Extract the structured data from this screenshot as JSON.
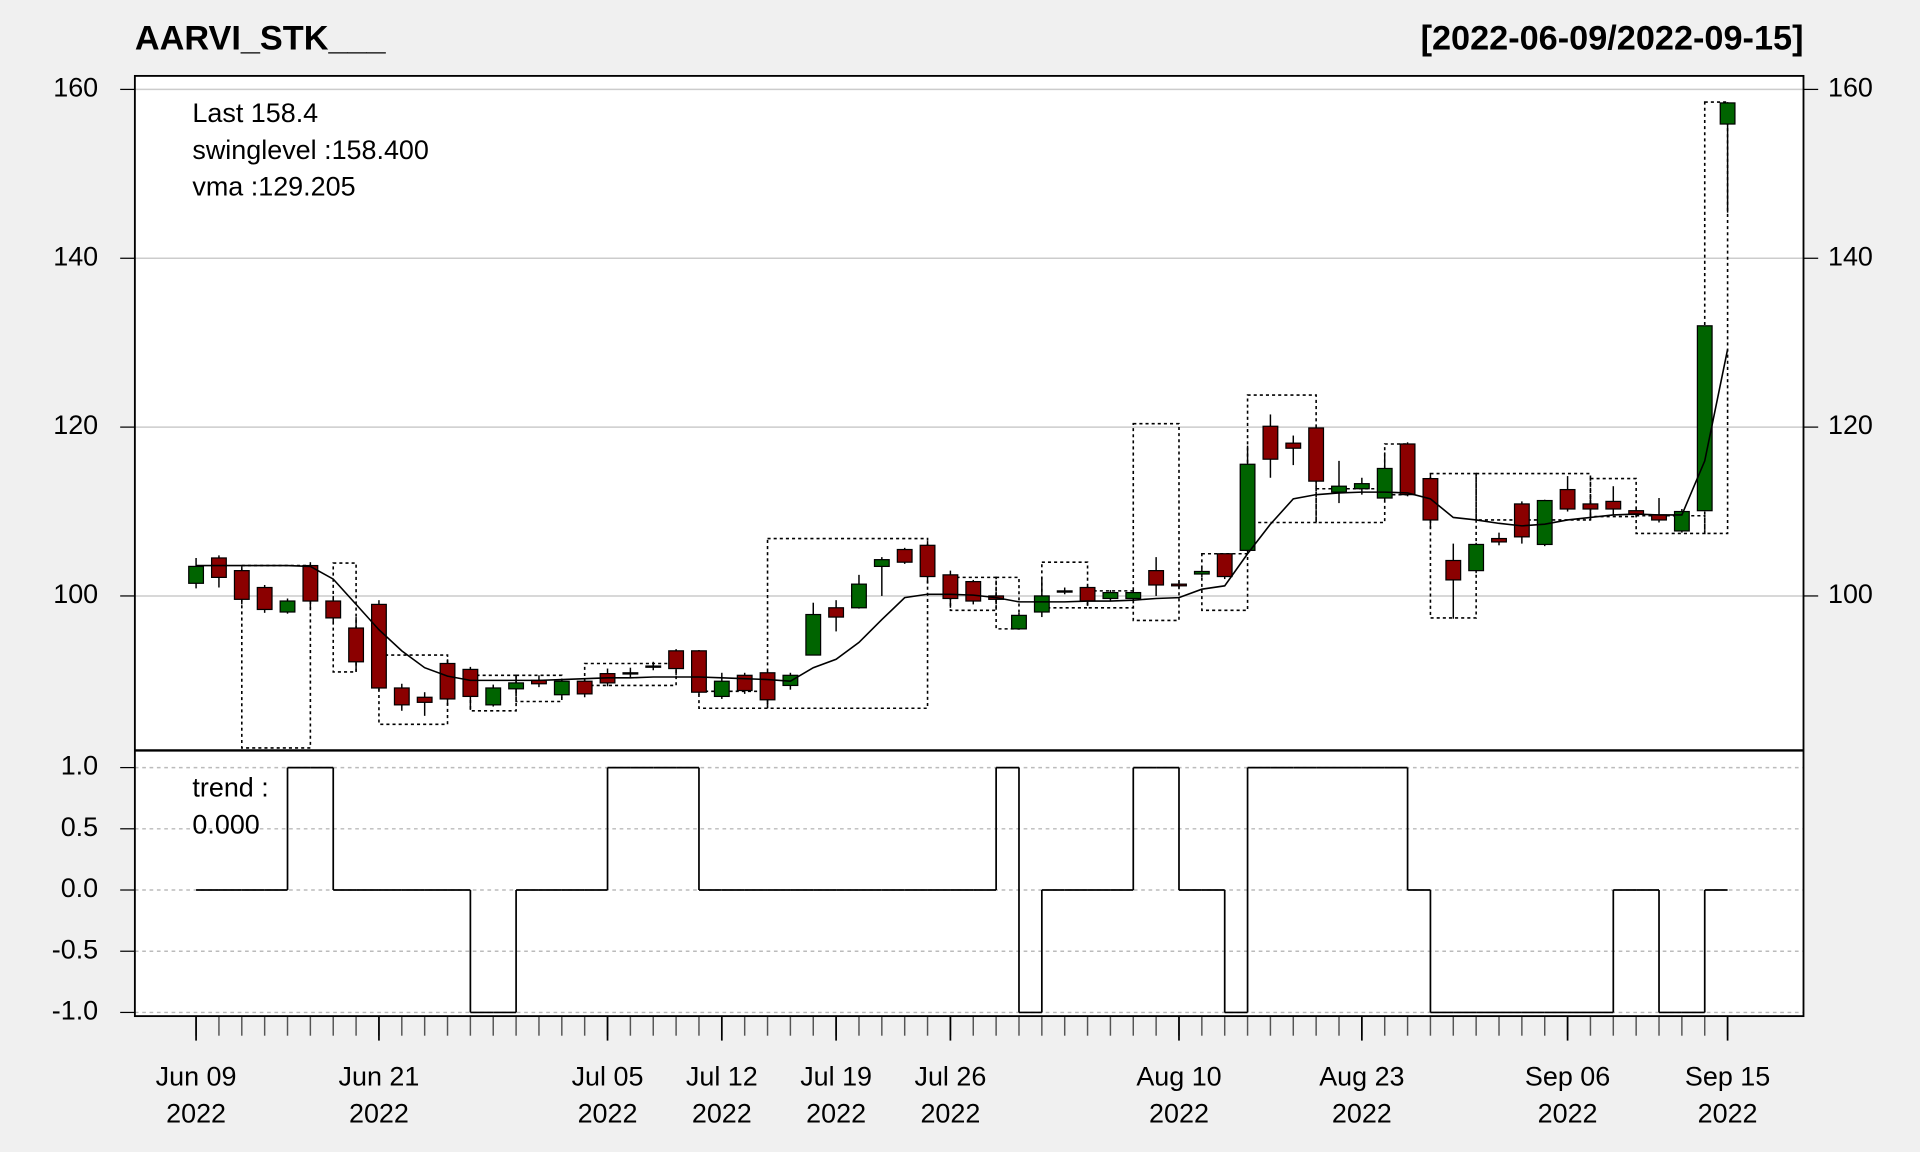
{
  "chart_data": [
    {
      "type": "candlestick",
      "title": "AARVI_STK___",
      "subtitle": "[2022-06-09/2022-09-15]",
      "categories": [
        "2022-06-09",
        "2022-06-10",
        "2022-06-13",
        "2022-06-14",
        "2022-06-15",
        "2022-06-16",
        "2022-06-17",
        "2022-06-20",
        "2022-06-21",
        "2022-06-22",
        "2022-06-23",
        "2022-06-24",
        "2022-06-27",
        "2022-06-28",
        "2022-06-29",
        "2022-06-30",
        "2022-07-01",
        "2022-07-04",
        "2022-07-05",
        "2022-07-06",
        "2022-07-07",
        "2022-07-08",
        "2022-07-11",
        "2022-07-12",
        "2022-07-13",
        "2022-07-14",
        "2022-07-15",
        "2022-07-18",
        "2022-07-19",
        "2022-07-20",
        "2022-07-21",
        "2022-07-22",
        "2022-07-25",
        "2022-07-26",
        "2022-07-27",
        "2022-07-28",
        "2022-07-29",
        "2022-08-01",
        "2022-08-02",
        "2022-08-03",
        "2022-08-04",
        "2022-08-05",
        "2022-08-08",
        "2022-08-10",
        "2022-08-11",
        "2022-08-12",
        "2022-08-16",
        "2022-08-17",
        "2022-08-18",
        "2022-08-19",
        "2022-08-22",
        "2022-08-23",
        "2022-08-24",
        "2022-08-25",
        "2022-08-26",
        "2022-08-29",
        "2022-08-30",
        "2022-09-01",
        "2022-09-02",
        "2022-09-05",
        "2022-09-06",
        "2022-09-07",
        "2022-09-08",
        "2022-09-09",
        "2022-09-12",
        "2022-09-13",
        "2022-09-14",
        "2022-09-15"
      ],
      "open": [
        101.5,
        104.5,
        103,
        101,
        98.1,
        103.6,
        99.4,
        96.2,
        99,
        89.1,
        88,
        92,
        91.3,
        87.1,
        89,
        90,
        88.3,
        89.9,
        90.8,
        90.9,
        91.7,
        93.5,
        93.5,
        88.1,
        90.6,
        90.9,
        89.4,
        93,
        98.6,
        98.6,
        103.5,
        105.5,
        106,
        102.5,
        101.7,
        100,
        96.1,
        98.1,
        100.6,
        101,
        99.7,
        99.7,
        103,
        101.4,
        102.6,
        105,
        105.4,
        120.1,
        118.1,
        119.9,
        112.3,
        112.7,
        111.6,
        118,
        113.9,
        104.2,
        103,
        106.8,
        110.9,
        106.1,
        112.6,
        110.9,
        111.2,
        110.1,
        109.6,
        107.7,
        110.1,
        155.9
      ],
      "high": [
        104.5,
        104.8,
        103.5,
        101.3,
        99.7,
        104,
        100,
        97.5,
        99.5,
        89.6,
        88.6,
        92.5,
        91.6,
        89.5,
        90.5,
        90.6,
        90.1,
        90.2,
        91.4,
        91.5,
        92.2,
        93.7,
        93.6,
        90.9,
        90.9,
        91.1,
        90.9,
        99.2,
        99.5,
        102.5,
        104.6,
        105.7,
        106.5,
        103,
        101.9,
        100.5,
        98,
        102.2,
        101,
        101.2,
        100.7,
        100.8,
        104.6,
        101.7,
        103.3,
        105,
        117.8,
        121.5,
        119,
        120,
        116,
        114,
        117,
        118.2,
        114.5,
        106.2,
        106.3,
        107.5,
        111.2,
        111.4,
        114.2,
        112,
        113,
        110.5,
        111.6,
        110.3,
        132,
        158.5
      ],
      "low": [
        100.9,
        101,
        99,
        98,
        97.9,
        98.5,
        96.8,
        91,
        88.8,
        86.4,
        85.8,
        87,
        86.5,
        86.9,
        88.5,
        89.2,
        87.9,
        88,
        89.3,
        90.3,
        91.2,
        90.6,
        88.3,
        87.8,
        88.4,
        87.2,
        88.9,
        93,
        95.8,
        98.5,
        100,
        103.8,
        101.5,
        98.6,
        99,
        99,
        96,
        97.5,
        100.2,
        99,
        99.4,
        99.3,
        100,
        100.9,
        102.2,
        102,
        105,
        114,
        115.5,
        113,
        111,
        112,
        111.3,
        111.8,
        108,
        97.3,
        102.7,
        106,
        106.2,
        105.9,
        110,
        109,
        109.6,
        109.3,
        108.7,
        107.5,
        110,
        145.4
      ],
      "close": [
        103.5,
        102.2,
        99.6,
        98.4,
        99.4,
        99.4,
        97.4,
        92.2,
        89.1,
        87.1,
        87.4,
        87.8,
        88.1,
        89.1,
        89.7,
        89.6,
        89.9,
        88.4,
        89.7,
        90.9,
        91.6,
        91.4,
        88.6,
        89.9,
        88.8,
        87.7,
        90.6,
        97.8,
        97.5,
        101.4,
        104.3,
        104,
        102.3,
        99.7,
        99.4,
        99.6,
        97.7,
        100,
        100.6,
        99.4,
        100.4,
        100.4,
        101.3,
        101.2,
        102.9,
        102.3,
        115.6,
        116.2,
        117.5,
        113.6,
        113,
        113.3,
        115.1,
        112,
        109,
        101.9,
        106.1,
        106.4,
        107,
        111.3,
        110.3,
        110.3,
        110.3,
        109.7,
        109,
        110,
        132,
        158.4
      ],
      "vma": [
        103.6,
        103.6,
        103.6,
        103.6,
        103.6,
        103.5,
        102,
        99,
        96,
        93.5,
        91.5,
        90.5,
        90,
        90,
        90,
        90,
        90.1,
        90.2,
        90.3,
        90.3,
        90.4,
        90.4,
        90.4,
        90.3,
        90.2,
        90.1,
        89.9,
        91.5,
        92.5,
        94.5,
        97.2,
        99.8,
        100.2,
        100.2,
        100.1,
        99.8,
        99.3,
        99.3,
        99.3,
        99.4,
        99.4,
        99.5,
        99.7,
        99.8,
        100.8,
        101.2,
        105,
        108.5,
        111.5,
        112,
        112.2,
        112.3,
        112.3,
        112.2,
        111.5,
        109.3,
        109,
        108.6,
        108.3,
        108.5,
        109,
        109.3,
        109.6,
        109.7,
        109.6,
        109.6,
        116,
        129.205
      ],
      "swing_boxes": [
        {
          "start": "2022-06-13",
          "end": "2022-06-16",
          "low": 82,
          "high": 103.6
        },
        {
          "start": "2022-06-17",
          "end": "2022-06-20",
          "low": 91,
          "high": 103.9
        },
        {
          "start": "2022-06-21",
          "end": "2022-06-24",
          "low": 84.8,
          "high": 93
        },
        {
          "start": "2022-06-27",
          "end": "2022-06-29",
          "low": 86.4,
          "high": 90.6
        },
        {
          "start": "2022-06-29",
          "end": "2022-07-01",
          "low": 87.5,
          "high": 90.6
        },
        {
          "start": "2022-07-04",
          "end": "2022-07-08",
          "low": 89.4,
          "high": 92
        },
        {
          "start": "2022-07-11",
          "end": "2022-07-14",
          "low": 86.7,
          "high": 88.7
        },
        {
          "start": "2022-07-14",
          "end": "2022-07-25",
          "low": 86.7,
          "high": 106.8
        },
        {
          "start": "2022-07-26",
          "end": "2022-07-28",
          "low": 98.3,
          "high": 102.2
        },
        {
          "start": "2022-07-28",
          "end": "2022-07-29",
          "low": 96.1,
          "high": 102.2
        },
        {
          "start": "2022-08-01",
          "end": "2022-08-03",
          "low": 98.6,
          "high": 104
        },
        {
          "start": "2022-08-03",
          "end": "2022-08-05",
          "low": 98.6,
          "high": 100.6
        },
        {
          "start": "2022-08-05",
          "end": "2022-08-10",
          "low": 97.1,
          "high": 120.4
        },
        {
          "start": "2022-08-11",
          "end": "2022-08-16",
          "low": 98.3,
          "high": 105
        },
        {
          "start": "2022-08-16",
          "end": "2022-08-19",
          "low": 108.7,
          "high": 123.8
        },
        {
          "start": "2022-08-19",
          "end": "2022-08-24",
          "low": 108.7,
          "high": 112.7
        },
        {
          "start": "2022-08-24",
          "end": "2022-08-25",
          "low": 112,
          "high": 118
        },
        {
          "start": "2022-08-26",
          "end": "2022-08-30",
          "low": 97.4,
          "high": 114.5
        },
        {
          "start": "2022-08-30",
          "end": "2022-09-07",
          "low": 109,
          "high": 114.5
        },
        {
          "start": "2022-09-07",
          "end": "2022-09-09",
          "low": 109.4,
          "high": 113.9
        },
        {
          "start": "2022-09-09",
          "end": "2022-09-14",
          "low": 107.4,
          "high": 109.5
        },
        {
          "start": "2022-09-14",
          "end": "2022-09-15",
          "low": 107.4,
          "high": 158.5
        }
      ],
      "legend": [
        "Last 158.4",
        "swinglevel :158.400",
        "vma :129.205"
      ],
      "up_color": "#006400",
      "down_color": "#8b0000",
      "last_color": "#006400",
      "ylim": [
        81.7,
        161.6
      ],
      "yticks": [
        100,
        120,
        140,
        160
      ],
      "grid": true,
      "xticks": [
        {
          "value": "2022-06-09",
          "label": "Jun 09",
          "year": "2022"
        },
        {
          "value": "2022-06-21",
          "label": "Jun 21",
          "year": "2022"
        },
        {
          "value": "2022-07-05",
          "label": "Jul 05",
          "year": "2022"
        },
        {
          "value": "2022-07-12",
          "label": "Jul 12",
          "year": "2022"
        },
        {
          "value": "2022-07-19",
          "label": "Jul 19",
          "year": "2022"
        },
        {
          "value": "2022-07-26",
          "label": "Jul 26",
          "year": "2022"
        },
        {
          "value": "2022-08-10",
          "label": "Aug 10",
          "year": "2022"
        },
        {
          "value": "2022-08-23",
          "label": "Aug 23",
          "year": "2022"
        },
        {
          "value": "2022-09-06",
          "label": "Sep 06",
          "year": "2022"
        },
        {
          "value": "2022-09-15",
          "label": "Sep 15",
          "year": "2022"
        }
      ]
    },
    {
      "type": "step",
      "legend": [
        "trend :",
        "0.000"
      ],
      "values": [
        0,
        0,
        0,
        0,
        1,
        1,
        0,
        0,
        0,
        0,
        0,
        0,
        -1,
        -1,
        0,
        0,
        0,
        0,
        1,
        1,
        1,
        1,
        0,
        0,
        0,
        0,
        0,
        0,
        0,
        0,
        0,
        0,
        0,
        0,
        0,
        1,
        -1,
        0,
        0,
        0,
        0,
        1,
        1,
        0,
        0,
        -1,
        1,
        1,
        1,
        1,
        1,
        1,
        1,
        0,
        -1,
        -1,
        -1,
        -1,
        -1,
        -1,
        -1,
        -1,
        0,
        0,
        -1,
        -1,
        0,
        0
      ],
      "ylim": [
        -1.03,
        1.14
      ],
      "yticks": [
        {
          "value": -1,
          "label": "-1.0"
        },
        -0.5,
        {
          "value": 0,
          "label": "0.0"
        },
        0.5,
        {
          "value": 1,
          "label": "1.0"
        }
      ],
      "grid": true
    }
  ]
}
